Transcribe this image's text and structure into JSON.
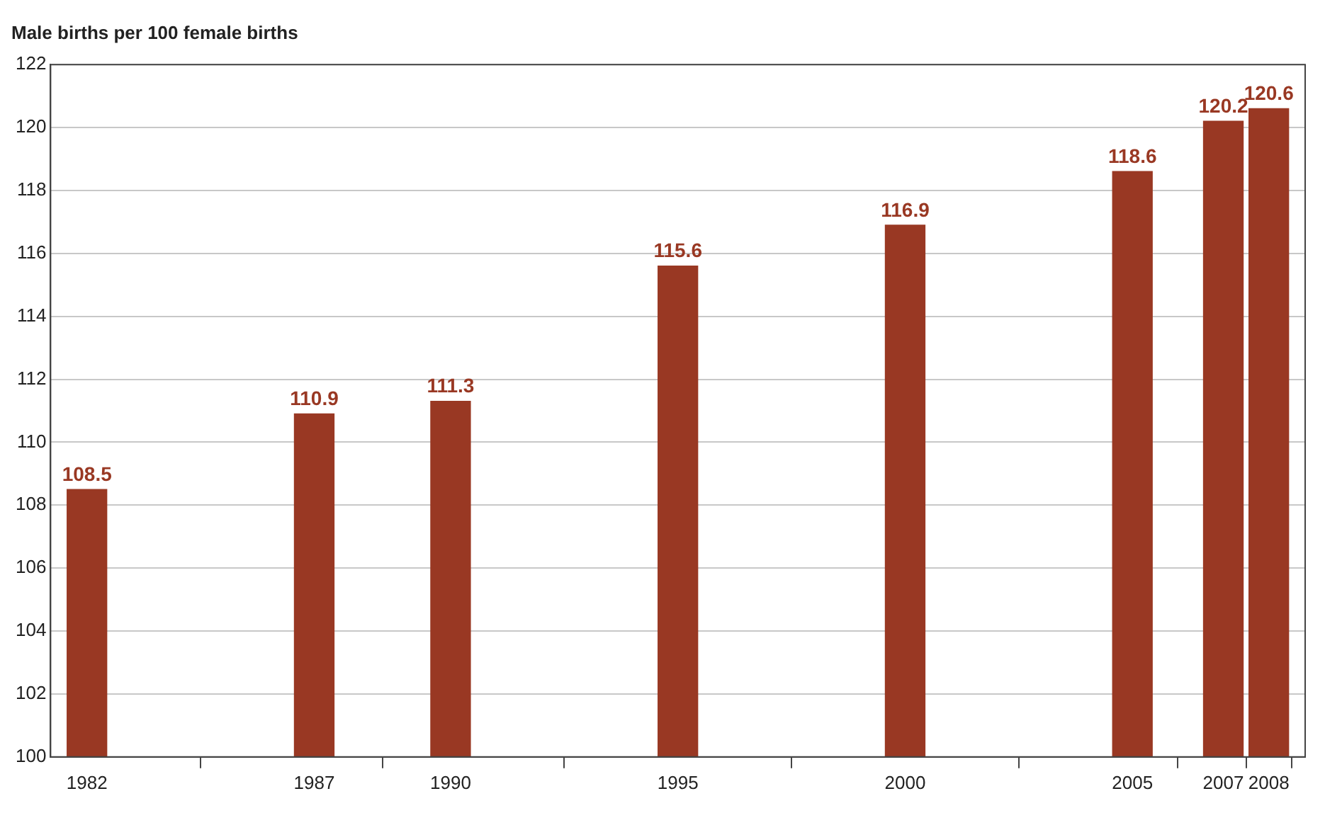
{
  "chart_data": {
    "type": "bar",
    "title": "Male births per 100 female births",
    "x": [
      1982,
      1987,
      1990,
      1995,
      2000,
      2005,
      2007,
      2008
    ],
    "values": [
      108.5,
      110.9,
      111.3,
      115.6,
      116.9,
      118.6,
      120.2,
      120.6
    ],
    "color": "#993823",
    "xlim": [
      1981.2,
      2008.8
    ],
    "xticks": [
      1982,
      1987,
      1990,
      1995,
      2000,
      2005,
      2007,
      2008
    ],
    "ylim": [
      100,
      122
    ],
    "yticks": [
      100,
      102,
      104,
      106,
      108,
      110,
      112,
      114,
      116,
      118,
      120,
      122
    ],
    "grid": "y",
    "data_labels": true,
    "legend": false
  }
}
